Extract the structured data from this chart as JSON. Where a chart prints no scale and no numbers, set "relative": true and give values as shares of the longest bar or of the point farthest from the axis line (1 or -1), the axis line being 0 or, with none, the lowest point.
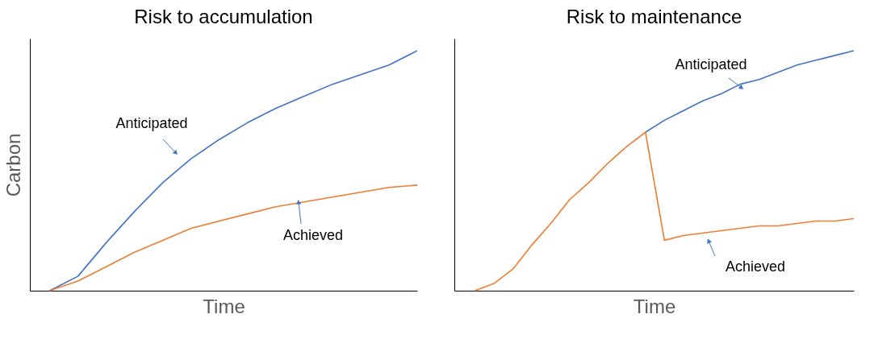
{
  "chart_data": [
    {
      "type": "line",
      "title": "Risk to accumulation",
      "xlabel": "Time",
      "ylabel": "Carbon",
      "relative": true,
      "tick_labels": false,
      "grid": false,
      "legend": false,
      "categories": [
        null,
        null,
        null,
        null,
        null,
        null,
        null,
        null,
        null,
        null,
        null,
        null,
        null,
        null
      ],
      "series": [
        {
          "color": "#4472c4",
          "values": [
            0,
            0.06,
            0.2,
            0.33,
            0.45,
            0.55,
            0.63,
            0.7,
            0.76,
            0.81,
            0.86,
            0.9,
            0.94,
            1
          ]
        },
        {
          "color": "#ed7d31",
          "values": [
            0,
            0.04,
            0.1,
            0.16,
            0.21,
            0.26,
            0.29,
            0.32,
            0.35,
            0.37,
            0.39,
            0.41,
            0.43,
            0.44
          ]
        }
      ],
      "annotations": [
        "Anticipated",
        "Achieved"
      ]
    },
    {
      "type": "line",
      "title": "Risk to maintenance",
      "xlabel": "Time",
      "relative": true,
      "tick_labels": false,
      "grid": false,
      "legend": false,
      "categories": [
        null,
        null,
        null,
        null,
        null,
        null,
        null,
        null,
        null,
        null,
        null,
        null,
        null,
        null,
        null,
        null,
        null,
        null,
        null,
        null,
        null
      ],
      "series": [
        {
          "color": "#4472c4",
          "values": [
            null,
            null,
            null,
            null,
            null,
            null,
            null,
            null,
            null,
            0.66,
            0.71,
            0.75,
            0.79,
            0.82,
            0.86,
            0.88,
            0.91,
            0.94,
            0.96,
            0.98,
            1
          ]
        },
        {
          "color": "#ed7d31",
          "values": [
            0,
            0.03,
            0.09,
            0.19,
            0.28,
            0.38,
            0.45,
            0.53,
            0.6,
            0.66,
            0.21,
            0.23,
            0.24,
            0.25,
            0.26,
            0.27,
            0.27,
            0.28,
            0.29,
            0.29,
            0.3
          ]
        }
      ],
      "annotations": [
        "Anticipated",
        "Achieved"
      ]
    }
  ]
}
